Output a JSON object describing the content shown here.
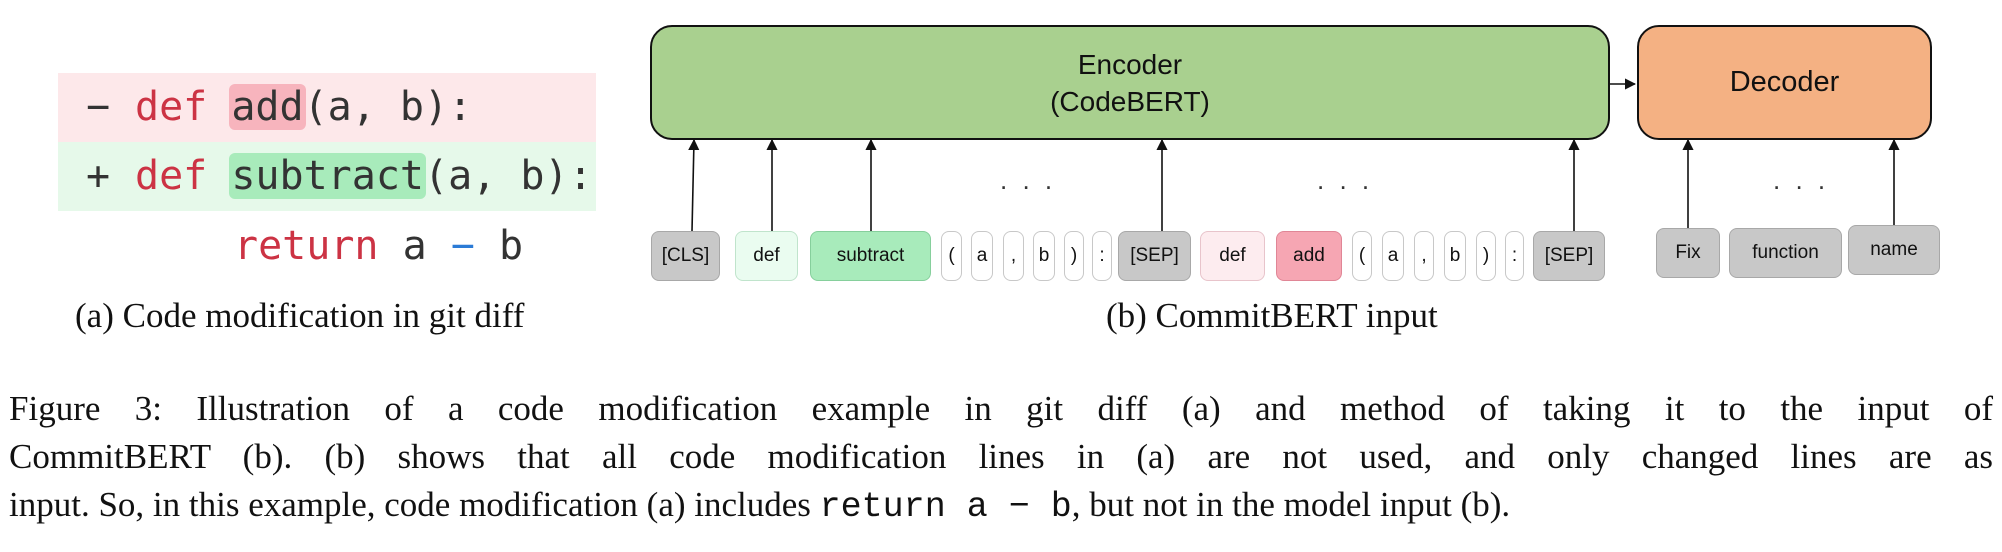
{
  "diff": {
    "removed": {
      "sign": "−",
      "keyword": "def",
      "name": "add",
      "rest": "(a, b):"
    },
    "added": {
      "sign": "+",
      "keyword": "def",
      "name": "subtract",
      "rest": "(a, b):"
    },
    "context": {
      "keyword": "return",
      "left": "a",
      "op": "−",
      "right": "b"
    },
    "colors": {
      "removed_bg": "#fde8ea",
      "added_bg": "#e6f9ea",
      "keyword": "#cc3344"
    }
  },
  "captions": {
    "a": "(a) Code modification in git diff",
    "b": "(b) CommitBERT input"
  },
  "model": {
    "encoder": {
      "title": "Encoder",
      "subtitle": "(CodeBERT)",
      "color": "#a9d08f"
    },
    "decoder": {
      "title": "Decoder",
      "color": "#f4b183"
    },
    "input_tokens": [
      "[CLS]",
      "def",
      "subtract",
      "(",
      "a",
      ",",
      "b",
      ")",
      ":",
      "[SEP]",
      "def",
      "add",
      "(",
      "a",
      ",",
      "b",
      ")",
      ":",
      "[SEP]"
    ],
    "output_tokens": [
      "Fix",
      "function",
      "name"
    ],
    "ellipsis": ". . ."
  },
  "figure_caption": {
    "line1": "Figure 3:   Illustration of a code modification example in git diff (a) and method of taking it to the input of",
    "line2": "CommitBERT (b).  (b) shows that all code modification lines in (a) are not used, and only changed lines are as",
    "line3_pre": "input. So, in this example, code modification (a) includes ",
    "line3_code": "return a − b",
    "line3_post": ", but not in the model input (b)."
  }
}
